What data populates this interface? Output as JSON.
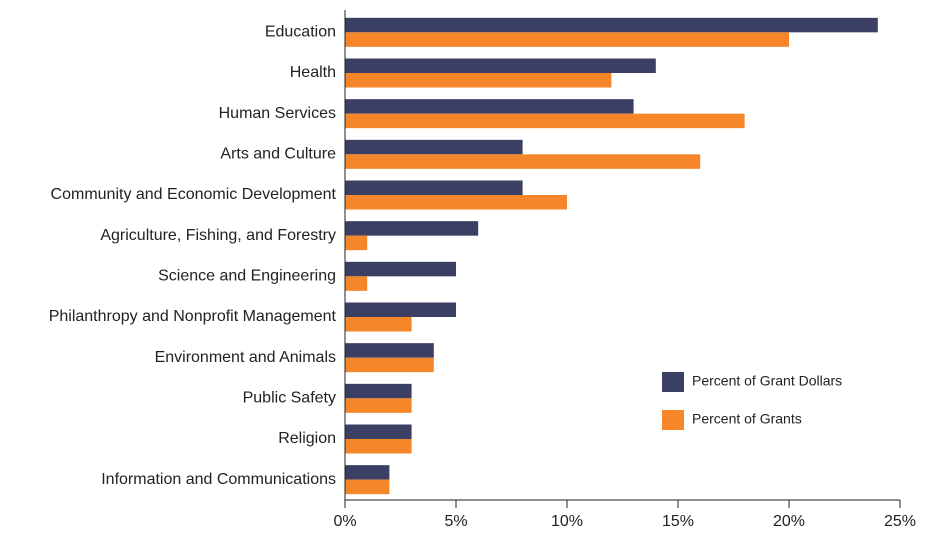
{
  "chart_data": {
    "type": "bar",
    "orientation": "horizontal",
    "categories": [
      "Education",
      "Health",
      "Human Services",
      "Arts and Culture",
      "Community and Economic Development",
      "Agriculture, Fishing, and Forestry",
      "Science and Engineering",
      "Philanthropy and Nonprofit Management",
      "Environment and Animals",
      "Public Safety",
      "Religion",
      "Information and Communications"
    ],
    "series": [
      {
        "name": "Percent of Grant Dollars",
        "color": "#3b3f63",
        "values": [
          24,
          14,
          13,
          8,
          8,
          6,
          5,
          5,
          4,
          3,
          3,
          2
        ]
      },
      {
        "name": "Percent of Grants",
        "color": "#f5862a",
        "values": [
          20,
          12,
          18,
          16,
          10,
          1,
          1,
          3,
          4,
          3,
          3,
          2
        ]
      }
    ],
    "xlim": [
      0,
      25
    ],
    "xticks": [
      {
        "value": 0,
        "label": "0%"
      },
      {
        "value": 5,
        "label": "5%"
      },
      {
        "value": 10,
        "label": "10%"
      },
      {
        "value": 15,
        "label": "15%"
      },
      {
        "value": 20,
        "label": "20%"
      },
      {
        "value": 25,
        "label": "25%"
      }
    ],
    "grid": false,
    "legend": "lower right"
  }
}
